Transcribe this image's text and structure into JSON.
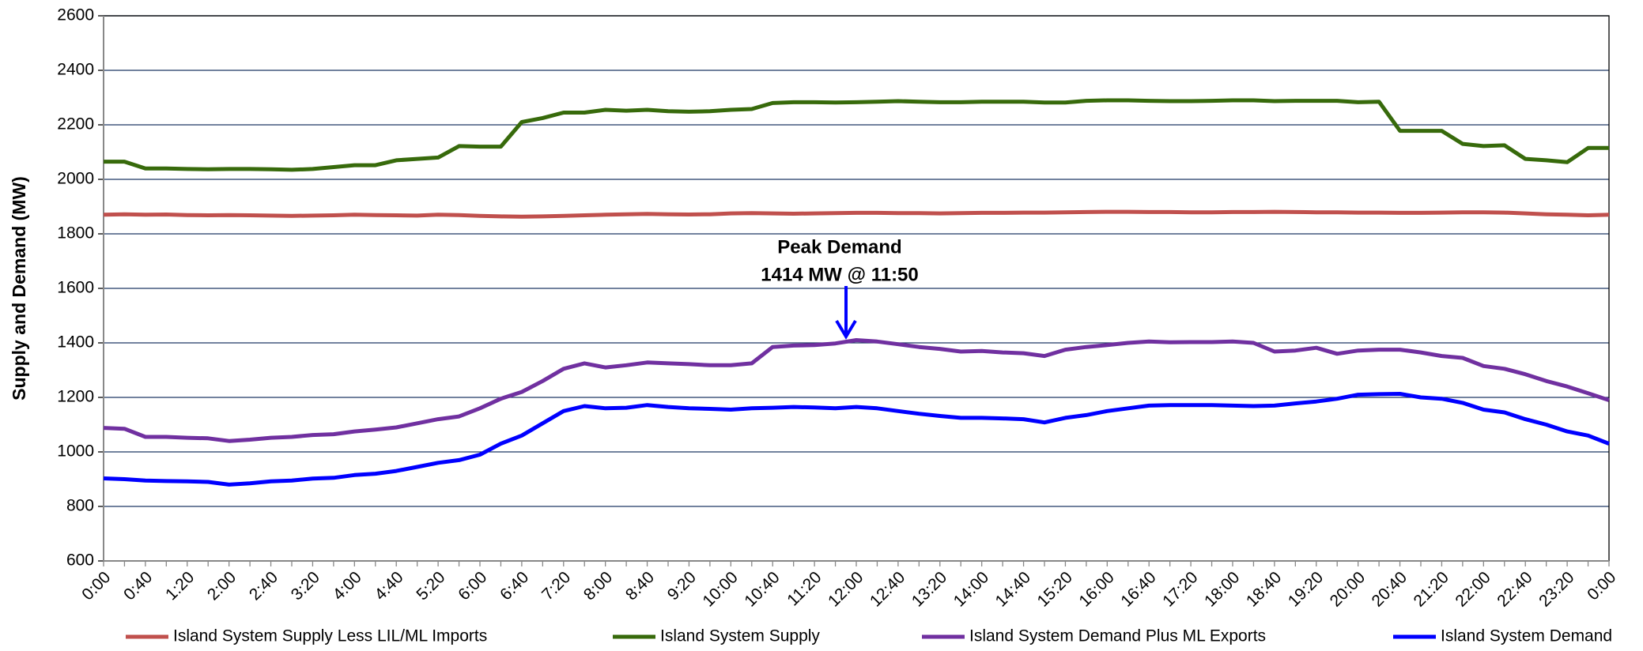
{
  "chart_data": {
    "type": "line",
    "y_label": "Supply and Demand (MW)",
    "annotation": [
      "Peak Demand",
      "1414 MW @ 11:50"
    ],
    "categories": [
      "0:00",
      null,
      "0:40",
      null,
      "1:20",
      null,
      "2:00",
      null,
      "2:40",
      null,
      "3:20",
      null,
      "4:00",
      null,
      "4:40",
      null,
      "5:20",
      null,
      "6:00",
      null,
      "6:40",
      null,
      "7:20",
      null,
      "8:00",
      null,
      "8:40",
      null,
      "9:20",
      null,
      "10:00",
      null,
      "10:40",
      null,
      "11:20",
      null,
      "12:00",
      null,
      "12:40",
      null,
      "13:20",
      null,
      "14:00",
      null,
      "14:40",
      null,
      "15:20",
      null,
      "16:00",
      null,
      "16:40",
      null,
      "17:20",
      null,
      "18:00",
      null,
      "18:40",
      null,
      "19:20",
      null,
      "20:00",
      null,
      "20:40",
      null,
      "21:20",
      null,
      "22:00",
      null,
      "22:40",
      null,
      "23:20",
      null,
      "0:00"
    ],
    "series": [
      {
        "name": "Island System Supply Less LIL/ML Imports",
        "color": "#c0504d",
        "values": [
          1870,
          1872,
          1870,
          1871,
          1869,
          1868,
          1869,
          1868,
          1867,
          1866,
          1867,
          1868,
          1870,
          1869,
          1868,
          1867,
          1870,
          1869,
          1866,
          1864,
          1863,
          1864,
          1866,
          1868,
          1870,
          1872,
          1873,
          1872,
          1871,
          1872,
          1875,
          1876,
          1875,
          1874,
          1875,
          1876,
          1877,
          1877,
          1876,
          1876,
          1875,
          1876,
          1877,
          1877,
          1878,
          1878,
          1879,
          1880,
          1881,
          1881,
          1880,
          1880,
          1879,
          1879,
          1880,
          1880,
          1881,
          1880,
          1879,
          1879,
          1878,
          1878,
          1877,
          1877,
          1878,
          1879,
          1879,
          1878,
          1875,
          1872,
          1870,
          1868,
          1870
        ]
      },
      {
        "name": "Island System Supply",
        "color": "#376a0b",
        "values": [
          2065,
          2065,
          2040,
          2040,
          2038,
          2037,
          2038,
          2038,
          2037,
          2035,
          2038,
          2045,
          2052,
          2052,
          2070,
          2075,
          2080,
          2122,
          2120,
          2120,
          2210,
          2225,
          2245,
          2245,
          2255,
          2252,
          2255,
          2250,
          2248,
          2250,
          2255,
          2258,
          2280,
          2283,
          2283,
          2282,
          2283,
          2285,
          2287,
          2285,
          2283,
          2283,
          2285,
          2285,
          2285,
          2282,
          2282,
          2288,
          2290,
          2290,
          2288,
          2287,
          2287,
          2288,
          2290,
          2290,
          2287,
          2288,
          2288,
          2288,
          2283,
          2285,
          2178,
          2178,
          2178,
          2130,
          2122,
          2125,
          2075,
          2070,
          2063,
          2115,
          2115
        ]
      },
      {
        "name": "Island System Demand Plus ML Exports",
        "color": "#7030a0",
        "values": [
          1088,
          1085,
          1055,
          1055,
          1052,
          1050,
          1040,
          1045,
          1052,
          1055,
          1062,
          1065,
          1075,
          1082,
          1090,
          1105,
          1120,
          1130,
          1160,
          1195,
          1220,
          1260,
          1305,
          1325,
          1310,
          1318,
          1328,
          1325,
          1322,
          1318,
          1318,
          1325,
          1385,
          1390,
          1392,
          1398,
          1410,
          1405,
          1395,
          1385,
          1378,
          1368,
          1370,
          1365,
          1362,
          1352,
          1375,
          1385,
          1392,
          1400,
          1405,
          1402,
          1403,
          1403,
          1405,
          1400,
          1368,
          1372,
          1382,
          1360,
          1372,
          1375,
          1375,
          1365,
          1352,
          1345,
          1315,
          1305,
          1285,
          1260,
          1240,
          1215,
          1190
        ]
      },
      {
        "name": "Island System Demand",
        "color": "#0000ff",
        "values": [
          903,
          900,
          895,
          893,
          892,
          890,
          880,
          885,
          892,
          895,
          902,
          905,
          915,
          920,
          930,
          945,
          960,
          970,
          990,
          1030,
          1060,
          1105,
          1150,
          1168,
          1160,
          1162,
          1172,
          1165,
          1160,
          1158,
          1155,
          1160,
          1162,
          1165,
          1163,
          1160,
          1165,
          1160,
          1150,
          1140,
          1132,
          1125,
          1125,
          1123,
          1120,
          1108,
          1125,
          1135,
          1150,
          1160,
          1170,
          1172,
          1172,
          1172,
          1170,
          1168,
          1170,
          1178,
          1185,
          1195,
          1210,
          1212,
          1213,
          1200,
          1195,
          1180,
          1155,
          1145,
          1120,
          1100,
          1075,
          1060,
          1030
        ]
      }
    ],
    "ylim": [
      600,
      2600
    ],
    "yticks": [
      600,
      800,
      1000,
      1200,
      1400,
      1600,
      1800,
      2000,
      2200,
      2400,
      2600
    ],
    "grid": true,
    "grid_color": "#1f3864",
    "legend": "bottom"
  }
}
